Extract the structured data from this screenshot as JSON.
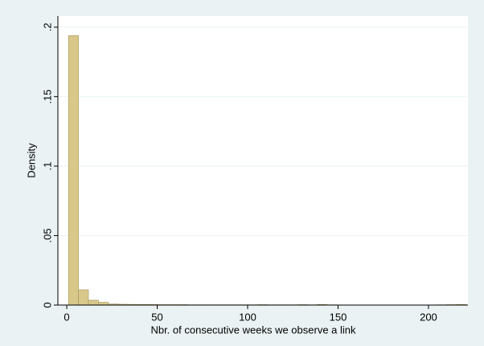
{
  "chart_data": {
    "type": "histogram",
    "x_label": "Nbr. of consecutive weeks we observe a link",
    "y_label": "Density",
    "bins": [
      1,
      6.5,
      12,
      17.5,
      23,
      28.5,
      34,
      39.5,
      45,
      50.5,
      56,
      61.5,
      67,
      72.5,
      78,
      83.5,
      89,
      94.5,
      100,
      105.5,
      111,
      116.5,
      122,
      127.5,
      133,
      138.5,
      144,
      149.5,
      155,
      160.5,
      166,
      171.5,
      177,
      182.5,
      188,
      193.5,
      199,
      204.5,
      210,
      215.5,
      221
    ],
    "values": [
      0.194,
      0.011,
      0.0035,
      0.002,
      0.0008,
      0.0006,
      0.0005,
      0.0004,
      0.0004,
      0.0003,
      0.0003,
      0.0003,
      0.0002,
      0.0002,
      0.0002,
      0.0002,
      0.0002,
      0.0002,
      0.0002,
      0.0003,
      0.0002,
      0.0002,
      0.0002,
      0.0003,
      0.0002,
      0.0004,
      0.0002,
      0.0001,
      0.0001,
      0.0001,
      0.0001,
      0.0001,
      0.0001,
      0.0001,
      0.0001,
      0.0001,
      0.0001,
      0.0002,
      0.0003,
      0.0004
    ],
    "color": "#d8c88a",
    "edge_color": "#a69660",
    "xlim": [
      -4.9,
      221.8
    ],
    "ylim": [
      0,
      0.208
    ],
    "xticks": [
      0,
      50,
      100,
      150,
      200
    ],
    "yticks": [
      0,
      {
        "value": 0.05,
        "label": ".05"
      },
      {
        "value": 0.1,
        "label": ".1"
      },
      {
        "value": 0.15,
        "label": ".15"
      },
      {
        "value": 0.2,
        "label": ".2"
      }
    ],
    "grid": true
  }
}
